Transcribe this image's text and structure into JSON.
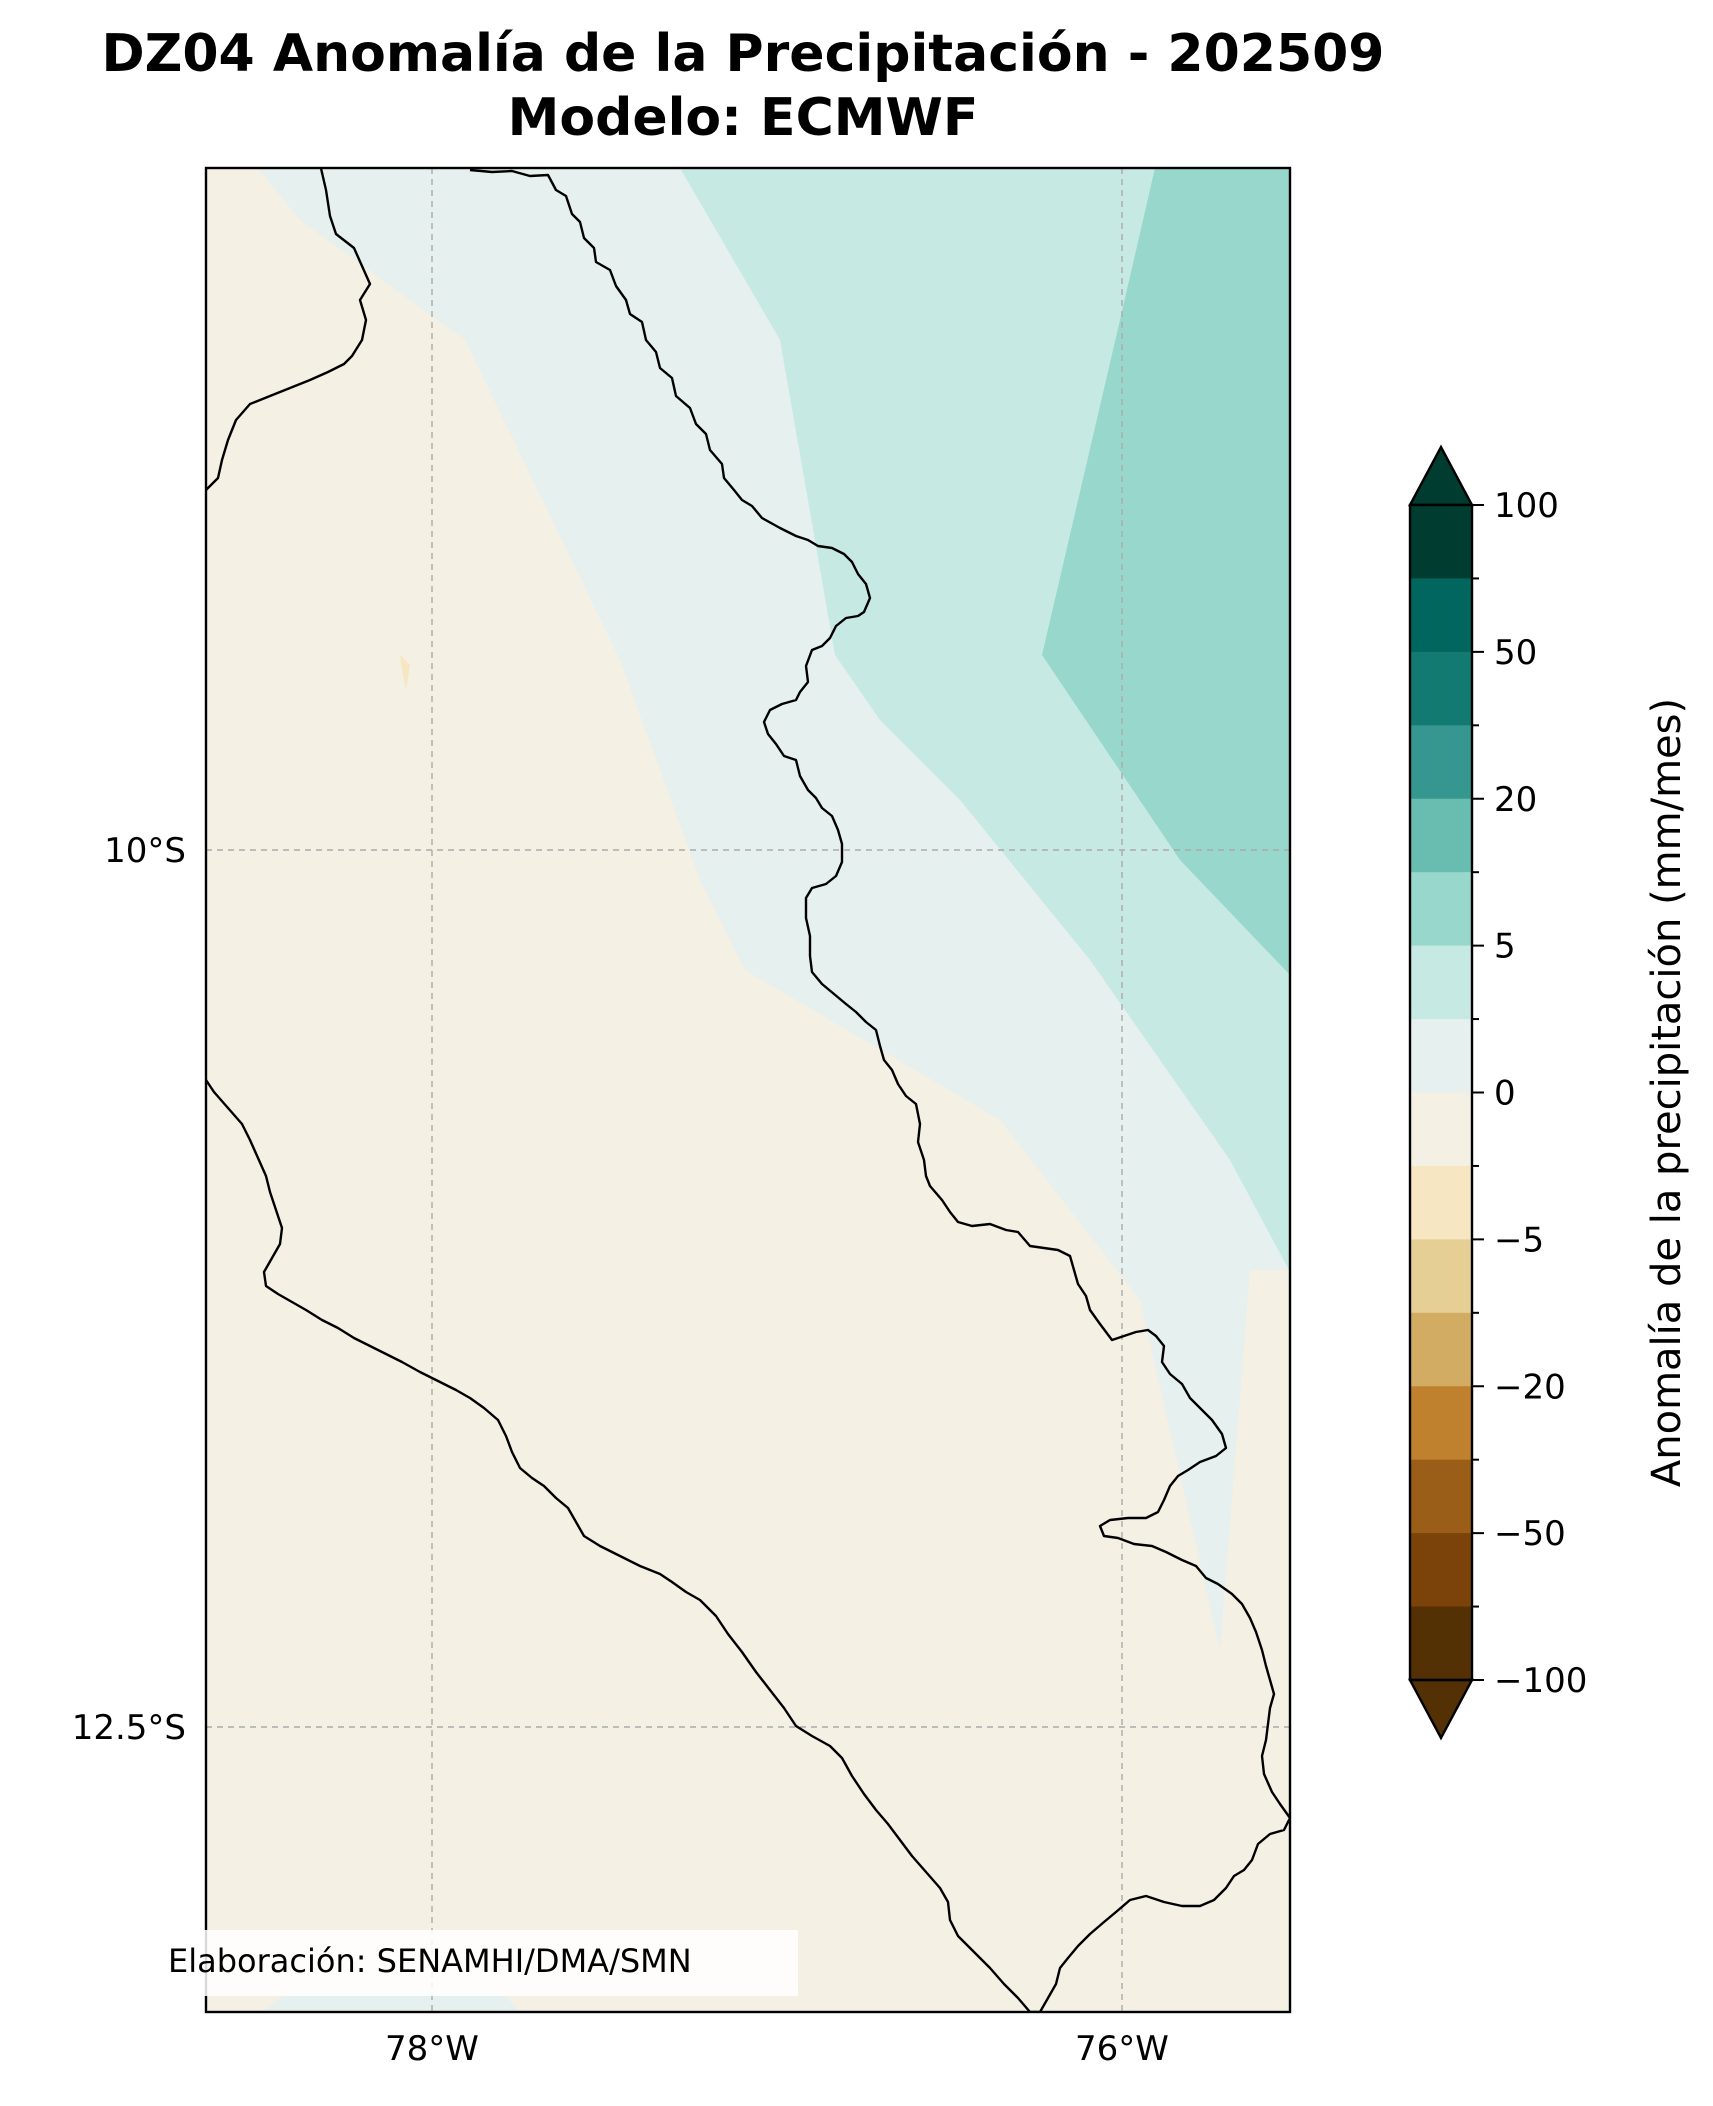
{
  "title": {
    "line1": "DZ04 Anomalía de la Precipitación - 202509",
    "line2": "Modelo: ECMWF"
  },
  "map": {
    "lat_ticks": [
      "10°S",
      "12.5°S"
    ],
    "lon_ticks": [
      "78°W",
      "76°W"
    ],
    "credit": "Elaboración: SENAMHI/DMA/SMN",
    "gridlines": true,
    "colors": {
      "background_anomaly": "#f4f0e4",
      "near_zero_positive": "#e6f0ee",
      "positive_low": "#c7e9e3",
      "positive_mid": "#98d7cc",
      "negative_small_patch": "#f6e6c2",
      "boundary": "#000000"
    }
  },
  "colorbar": {
    "label": "Anomalía de la precipitación (mm/mes)",
    "extend": "both",
    "tick_labels": [
      "100",
      "50",
      "20",
      "5",
      "0",
      "−5",
      "−20",
      "−50",
      "−100"
    ],
    "colors_top_to_bottom": [
      "#003c30",
      "#01665e",
      "#127a70",
      "#35978f",
      "#68bcb0",
      "#98d7cc",
      "#c7e9e3",
      "#e6f0ee",
      "#f4f0e4",
      "#f6e6c2",
      "#e6cf95",
      "#d2ac62",
      "#bf812d",
      "#9b5e18",
      "#7b4309",
      "#543005"
    ]
  }
}
